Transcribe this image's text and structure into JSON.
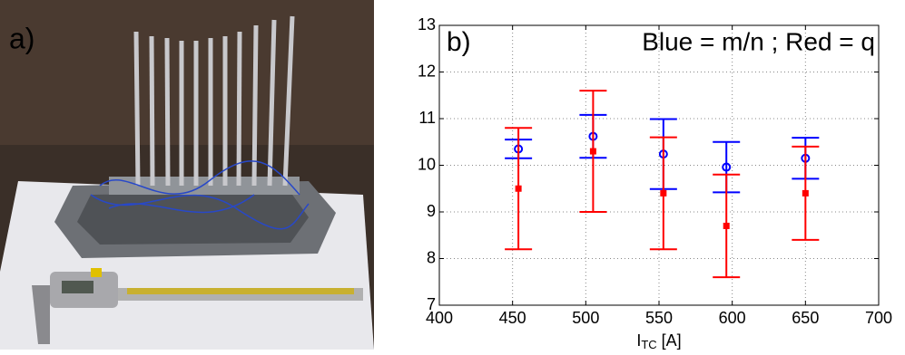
{
  "photo": {
    "label": "a)"
  },
  "chart_data": {
    "type": "errorbar-scatter",
    "panel_label": "b)",
    "annotation": "Blue = m/n ; Red = q",
    "xlabel": {
      "main": "I",
      "sub": "TC",
      "unit": "[A]"
    },
    "x": [
      454,
      505,
      553,
      596,
      650
    ],
    "series": [
      {
        "color": "#0000ff",
        "marker": "circle",
        "values": [
          10.35,
          10.62,
          10.24,
          9.96,
          10.15
        ],
        "errors": [
          0.2,
          0.46,
          0.75,
          0.54,
          0.44
        ]
      },
      {
        "color": "#ff0000",
        "marker": "square",
        "values": [
          9.5,
          10.3,
          9.4,
          8.7,
          9.4
        ],
        "errors": [
          1.3,
          1.3,
          1.2,
          1.1,
          1.0
        ]
      }
    ],
    "xlim": [
      400,
      700
    ],
    "ylim": [
      7,
      13
    ],
    "xticks": [
      400,
      450,
      500,
      550,
      600,
      650,
      700
    ],
    "yticks": [
      7,
      8,
      9,
      10,
      11,
      12,
      13
    ],
    "grid": true
  }
}
